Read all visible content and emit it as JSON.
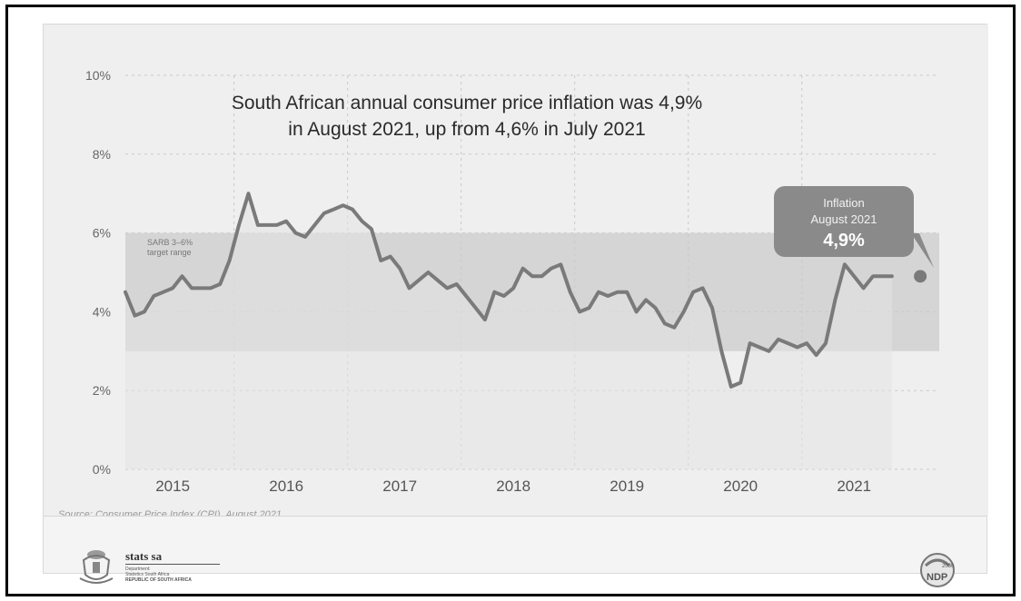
{
  "chart_data": {
    "type": "line",
    "title": "South African annual consumer price inflation was 4,9%\nin August 2021, up from 4,6% in July 2021",
    "title_lines": [
      "South African annual consumer price inflation was 4,9%",
      "in August 2021, up from 4,6% in July 2021"
    ],
    "xlabel": "",
    "ylabel": "",
    "ylim": [
      0,
      10
    ],
    "xlim": [
      2014.583,
      2021.75
    ],
    "yticks": [
      0,
      2,
      4,
      6,
      8,
      10
    ],
    "ytick_labels": [
      "0%",
      "2%",
      "4%",
      "6%",
      "8%",
      "10%"
    ],
    "year_labels": [
      {
        "label": "2015",
        "x": 2015.0
      },
      {
        "label": "2016",
        "x": 2016.0
      },
      {
        "label": "2017",
        "x": 2017.0
      },
      {
        "label": "2018",
        "x": 2018.0
      },
      {
        "label": "2019",
        "x": 2019.0
      },
      {
        "label": "2020",
        "x": 2020.0
      },
      {
        "label": "2021",
        "x": 2021.0
      }
    ],
    "grid": true,
    "target_band": {
      "from": 3,
      "to": 6,
      "label_lines": [
        "SARB 3–6%",
        "target range"
      ]
    },
    "series": [
      {
        "name": "",
        "color": "#7a7a7a",
        "x": [
          2014.583,
          2014.667,
          2014.75,
          2014.833,
          2014.917,
          2015.0,
          2015.083,
          2015.167,
          2015.25,
          2015.333,
          2015.417,
          2015.5,
          2015.583,
          2015.667,
          2015.75,
          2015.833,
          2015.917,
          2016.0,
          2016.083,
          2016.167,
          2016.25,
          2016.333,
          2016.417,
          2016.5,
          2016.583,
          2016.667,
          2016.75,
          2016.833,
          2016.917,
          2017.0,
          2017.083,
          2017.167,
          2017.25,
          2017.333,
          2017.417,
          2017.5,
          2017.583,
          2017.667,
          2017.75,
          2017.833,
          2017.917,
          2018.0,
          2018.083,
          2018.167,
          2018.25,
          2018.333,
          2018.417,
          2018.5,
          2018.583,
          2018.667,
          2018.75,
          2018.833,
          2018.917,
          2019.0,
          2019.083,
          2019.167,
          2019.25,
          2019.333,
          2019.417,
          2019.5,
          2019.583,
          2019.667,
          2019.75,
          2019.833,
          2019.917,
          2020.0,
          2020.083,
          2020.167,
          2020.25,
          2020.333,
          2020.417,
          2020.5,
          2020.583,
          2020.667,
          2020.75,
          2020.833,
          2020.917,
          2021.0,
          2021.083,
          2021.167,
          2021.25,
          2021.333
        ],
        "y": [
          4.5,
          3.9,
          4.0,
          4.4,
          4.5,
          4.6,
          4.9,
          4.6,
          4.6,
          4.6,
          4.7,
          5.3,
          6.2,
          7.0,
          6.2,
          6.2,
          6.2,
          6.3,
          6.0,
          5.9,
          6.2,
          6.5,
          6.6,
          6.7,
          6.6,
          6.3,
          6.1,
          5.3,
          5.4,
          5.1,
          4.6,
          4.8,
          5.0,
          4.8,
          4.6,
          4.7,
          4.4,
          4.1,
          3.8,
          4.5,
          4.4,
          4.6,
          5.1,
          4.9,
          4.9,
          5.1,
          5.2,
          4.5,
          4.0,
          4.1,
          4.5,
          4.4,
          4.5,
          4.5,
          4.0,
          4.3,
          4.1,
          3.7,
          3.6,
          4.0,
          4.5,
          4.6,
          4.1,
          3.0,
          2.1,
          2.2,
          3.2,
          3.1,
          3.0,
          3.3,
          3.2,
          3.1,
          3.2,
          2.9,
          3.2,
          4.3,
          5.2,
          4.9,
          4.6,
          4.9,
          4.9,
          4.9
        ]
      }
    ],
    "highlight_point": {
      "x": 2021.583,
      "y": 4.9
    },
    "callout": {
      "line1": "Inflation",
      "line2": "August 2021",
      "value": "4,9%"
    }
  },
  "colors": {
    "background": "#efefef",
    "band": "#d5d5d5",
    "area": "#e4e4e4",
    "line": "#7a7a7a",
    "callout": "#8a8a8a",
    "grid": "#c9c9c9"
  },
  "source": "Source: Consumer Price Index (CPI), August 2021",
  "brand": {
    "title": "stats sa",
    "sub1": "Department:",
    "sub2": "Statistics South Africa",
    "sub3": "REPUBLIC OF SOUTH AFRICA",
    "coat_of_arms_icon": "coat-of-arms-icon"
  },
  "ndp": {
    "label": "NDP",
    "year": "2030"
  }
}
